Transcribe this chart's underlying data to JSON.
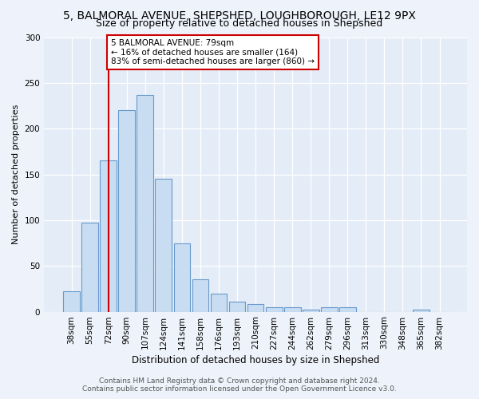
{
  "title": "5, BALMORAL AVENUE, SHEPSHED, LOUGHBOROUGH, LE12 9PX",
  "subtitle": "Size of property relative to detached houses in Shepshed",
  "xlabel": "Distribution of detached houses by size in Shepshed",
  "ylabel": "Number of detached properties",
  "bar_labels": [
    "38sqm",
    "55sqm",
    "72sqm",
    "90sqm",
    "107sqm",
    "124sqm",
    "141sqm",
    "158sqm",
    "176sqm",
    "193sqm",
    "210sqm",
    "227sqm",
    "244sqm",
    "262sqm",
    "279sqm",
    "296sqm",
    "313sqm",
    "330sqm",
    "348sqm",
    "365sqm",
    "382sqm"
  ],
  "bar_heights": [
    22,
    97,
    165,
    220,
    237,
    145,
    75,
    35,
    20,
    11,
    8,
    5,
    5,
    2,
    5,
    5,
    0,
    0,
    0,
    2,
    0
  ],
  "bar_color": "#c9ddf2",
  "bar_edge_color": "#6699cc",
  "vline_x_index": 2,
  "vline_color": "#cc0000",
  "annotation_text": "5 BALMORAL AVENUE: 79sqm\n← 16% of detached houses are smaller (164)\n83% of semi-detached houses are larger (860) →",
  "annotation_box_facecolor": "#ffffff",
  "annotation_box_edgecolor": "#cc0000",
  "ylim": [
    0,
    300
  ],
  "yticks": [
    0,
    50,
    100,
    150,
    200,
    250,
    300
  ],
  "footer_line1": "Contains HM Land Registry data © Crown copyright and database right 2024.",
  "footer_line2": "Contains public sector information licensed under the Open Government Licence v3.0.",
  "fig_facecolor": "#eef2fa",
  "axes_facecolor": "#e4ecf7",
  "title_fontsize": 10,
  "subtitle_fontsize": 9,
  "xlabel_fontsize": 8.5,
  "ylabel_fontsize": 8,
  "tick_fontsize": 7.5,
  "footer_fontsize": 6.5
}
